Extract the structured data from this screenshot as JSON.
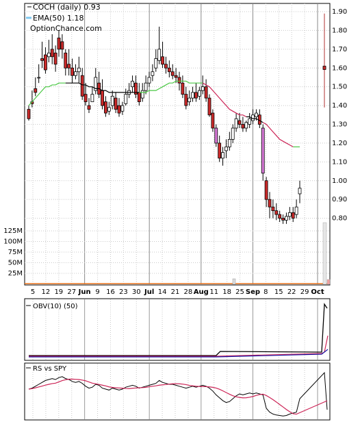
{
  "legend": {
    "ticker_text": "COCH (daily) 0.93",
    "ema_text": "EMA(50) 1.18",
    "brand": "OptionChance.com"
  },
  "panels": {
    "obv_label": "OBV(10) (50)",
    "rs_label": "RS vs SPY"
  },
  "colors": {
    "up_candle": "#ffffff",
    "down_candle": "#cc2a2a",
    "pink_candle": "#d87ad8",
    "ema_green": "#49c843",
    "ema_red": "#cc2255",
    "black_line": "#000000",
    "volume_orange": "#e8701a",
    "obv_blue": "#1a1aa8",
    "grid": "#c8c8c8",
    "legend_ema_swatch": "#7ec8f0"
  },
  "chart_data": {
    "type": "candlestick",
    "y_axis": {
      "min": 0.7,
      "max": 1.9,
      "ticks": [
        "1.90",
        "1.80",
        "1.70",
        "1.60",
        "1.50",
        "1.40",
        "1.30",
        "1.20",
        "1.10",
        "1.00",
        "0.90",
        "0.80"
      ]
    },
    "volume_axis": {
      "ticks": [
        "125M",
        "100M",
        "75M",
        "50M",
        "25M"
      ]
    },
    "x_tick_labels": [
      "5",
      "12",
      "19",
      "27",
      "Jun",
      "9",
      "16",
      "23",
      "30",
      "Jul",
      "14",
      "21",
      "28",
      "Aug",
      "11",
      "18",
      "25",
      "Sep",
      "8",
      "15",
      "22",
      "29",
      "Oct"
    ],
    "candles": [
      [
        1.38,
        1.4,
        1.33,
        1.32
      ],
      [
        1.42,
        1.48,
        1.41,
        1.39
      ],
      [
        1.49,
        1.55,
        1.47,
        1.45
      ],
      [
        1.55,
        1.62,
        1.55,
        1.52
      ],
      [
        1.65,
        1.74,
        1.64,
        1.6
      ],
      [
        1.67,
        1.71,
        1.59,
        1.57
      ],
      [
        1.66,
        1.75,
        1.68,
        1.63
      ],
      [
        1.7,
        1.78,
        1.66,
        1.62
      ],
      [
        1.68,
        1.72,
        1.62,
        1.58
      ],
      [
        1.76,
        1.8,
        1.7,
        1.66
      ],
      [
        1.74,
        1.78,
        1.7,
        1.65
      ],
      [
        1.68,
        1.7,
        1.6,
        1.56
      ],
      [
        1.62,
        1.7,
        1.6,
        1.56
      ],
      [
        1.6,
        1.65,
        1.56,
        1.52
      ],
      [
        1.56,
        1.62,
        1.58,
        1.54
      ],
      [
        1.58,
        1.66,
        1.6,
        1.52
      ],
      [
        1.56,
        1.6,
        1.45,
        1.43
      ],
      [
        1.46,
        1.52,
        1.42,
        1.4
      ],
      [
        1.4,
        1.44,
        1.38,
        1.36
      ],
      [
        1.42,
        1.5,
        1.46,
        1.42
      ],
      [
        1.48,
        1.6,
        1.55,
        1.46
      ],
      [
        1.52,
        1.58,
        1.46,
        1.44
      ],
      [
        1.48,
        1.54,
        1.4,
        1.38
      ],
      [
        1.42,
        1.45,
        1.36,
        1.34
      ],
      [
        1.37,
        1.42,
        1.39,
        1.35
      ],
      [
        1.4,
        1.48,
        1.45,
        1.38
      ],
      [
        1.44,
        1.47,
        1.38,
        1.36
      ],
      [
        1.4,
        1.44,
        1.36,
        1.34
      ],
      [
        1.37,
        1.42,
        1.4,
        1.35
      ],
      [
        1.41,
        1.49,
        1.46,
        1.4
      ],
      [
        1.46,
        1.52,
        1.48,
        1.44
      ],
      [
        1.5,
        1.56,
        1.53,
        1.47
      ],
      [
        1.52,
        1.56,
        1.46,
        1.44
      ],
      [
        1.47,
        1.52,
        1.42,
        1.4
      ],
      [
        1.44,
        1.52,
        1.48,
        1.42
      ],
      [
        1.48,
        1.56,
        1.52,
        1.46
      ],
      [
        1.52,
        1.58,
        1.55,
        1.5
      ],
      [
        1.56,
        1.62,
        1.58,
        1.53
      ],
      [
        1.6,
        1.7,
        1.65,
        1.58
      ],
      [
        1.64,
        1.82,
        1.7,
        1.62
      ],
      [
        1.66,
        1.74,
        1.62,
        1.6
      ],
      [
        1.62,
        1.66,
        1.6,
        1.57
      ],
      [
        1.6,
        1.64,
        1.58,
        1.55
      ],
      [
        1.58,
        1.62,
        1.56,
        1.54
      ],
      [
        1.56,
        1.6,
        1.55,
        1.52
      ],
      [
        1.55,
        1.58,
        1.52,
        1.48
      ],
      [
        1.52,
        1.56,
        1.46,
        1.44
      ],
      [
        1.46,
        1.5,
        1.4,
        1.38
      ],
      [
        1.42,
        1.48,
        1.44,
        1.4
      ],
      [
        1.44,
        1.5,
        1.47,
        1.42
      ],
      [
        1.47,
        1.52,
        1.44,
        1.42
      ],
      [
        1.45,
        1.5,
        1.48,
        1.43
      ],
      [
        1.48,
        1.56,
        1.5,
        1.46
      ],
      [
        1.5,
        1.54,
        1.44,
        1.42
      ],
      [
        1.44,
        1.46,
        1.35,
        1.34
      ],
      [
        1.36,
        1.38,
        1.28,
        1.26
      ],
      [
        1.28,
        1.3,
        1.2,
        1.18
      ],
      [
        1.2,
        1.24,
        1.12,
        1.1
      ],
      [
        1.12,
        1.18,
        1.15,
        1.08
      ],
      [
        1.16,
        1.22,
        1.18,
        1.12
      ],
      [
        1.18,
        1.26,
        1.22,
        1.16
      ],
      [
        1.22,
        1.3,
        1.28,
        1.2
      ],
      [
        1.28,
        1.36,
        1.33,
        1.26
      ],
      [
        1.32,
        1.36,
        1.3,
        1.28
      ],
      [
        1.3,
        1.34,
        1.28,
        1.26
      ],
      [
        1.28,
        1.32,
        1.31,
        1.26
      ],
      [
        1.3,
        1.36,
        1.33,
        1.28
      ],
      [
        1.32,
        1.38,
        1.35,
        1.3
      ],
      [
        1.34,
        1.38,
        1.36,
        1.32
      ],
      [
        1.35,
        1.38,
        1.3,
        1.28
      ],
      [
        1.28,
        1.3,
        1.04,
        1.0
      ],
      [
        1.0,
        1.02,
        0.9,
        0.86
      ],
      [
        0.9,
        0.94,
        0.86,
        0.8
      ],
      [
        0.86,
        0.9,
        0.84,
        0.8
      ],
      [
        0.84,
        0.88,
        0.82,
        0.79
      ],
      [
        0.82,
        0.84,
        0.8,
        0.78
      ],
      [
        0.8,
        0.82,
        0.79,
        0.77
      ],
      [
        0.79,
        0.83,
        0.81,
        0.77
      ],
      [
        0.81,
        0.86,
        0.83,
        0.79
      ],
      [
        0.83,
        0.86,
        0.8,
        0.78
      ],
      [
        0.82,
        0.9,
        0.86,
        0.8
      ],
      [
        0.93,
        1.0,
        0.96,
        0.88
      ]
    ],
    "ema50": [
      1.4,
      1.42,
      1.44,
      1.46,
      1.48,
      1.5,
      1.5,
      1.51,
      1.51,
      1.52,
      1.52,
      1.52,
      1.52,
      1.52,
      1.52,
      1.52,
      1.51,
      1.51,
      1.5,
      1.5,
      1.49,
      1.49,
      1.48,
      1.48,
      1.47,
      1.47,
      1.47,
      1.47,
      1.47,
      1.47,
      1.47,
      1.47,
      1.47,
      1.47,
      1.47,
      1.47,
      1.48,
      1.48,
      1.48,
      1.49,
      1.5,
      1.51,
      1.52,
      1.52,
      1.53,
      1.53,
      1.53,
      1.53,
      1.52,
      1.52,
      1.52,
      1.52,
      1.52,
      1.51,
      1.5,
      1.48,
      1.46,
      1.44,
      1.42,
      1.4,
      1.38,
      1.37,
      1.36,
      1.35,
      1.35,
      1.34,
      1.34,
      1.33,
      1.33,
      1.32,
      1.31,
      1.3,
      1.28,
      1.26,
      1.24,
      1.22,
      1.21,
      1.2,
      1.19,
      1.18,
      1.18,
      1.18
    ],
    "obv": {
      "start": 0.9,
      "rise_index": 56,
      "end": 0.05
    },
    "rs": [
      0.6,
      0.62,
      0.66,
      0.7,
      0.74,
      0.78,
      0.8,
      0.82,
      0.8,
      0.84,
      0.86,
      0.82,
      0.8,
      0.76,
      0.74,
      0.76,
      0.72,
      0.66,
      0.62,
      0.64,
      0.7,
      0.68,
      0.62,
      0.6,
      0.58,
      0.62,
      0.6,
      0.58,
      0.6,
      0.64,
      0.66,
      0.68,
      0.66,
      0.62,
      0.64,
      0.66,
      0.68,
      0.7,
      0.72,
      0.78,
      0.74,
      0.72,
      0.7,
      0.7,
      0.68,
      0.66,
      0.64,
      0.62,
      0.64,
      0.66,
      0.64,
      0.66,
      0.68,
      0.66,
      0.62,
      0.56,
      0.48,
      0.42,
      0.36,
      0.32,
      0.34,
      0.4,
      0.46,
      0.5,
      0.48,
      0.5,
      0.52,
      0.5,
      0.52,
      0.5,
      0.48,
      0.2,
      0.12,
      0.08,
      0.06,
      0.05,
      0.04,
      0.05,
      0.08,
      0.1,
      0.12,
      0.4
    ]
  }
}
